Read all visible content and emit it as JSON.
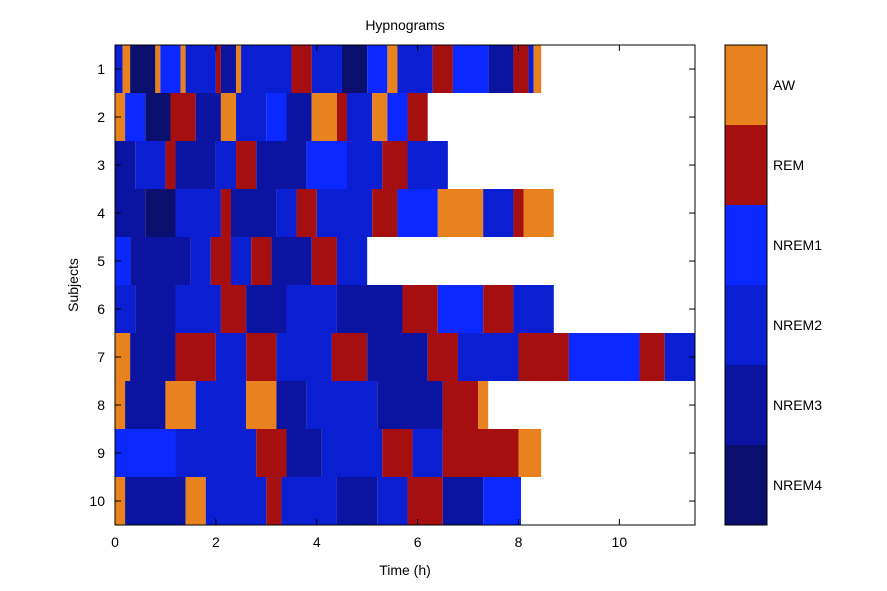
{
  "chart_data": {
    "type": "heatmap",
    "title": "Hypnograms",
    "xlabel": "Time (h)",
    "ylabel": "Subjects",
    "xlim": [
      0,
      11.5
    ],
    "xticks": [
      0,
      2,
      4,
      6,
      8,
      10
    ],
    "yticks": [
      1,
      2,
      3,
      4,
      5,
      6,
      7,
      8,
      9,
      10
    ],
    "grid": false,
    "colorbar": {
      "placement": "right",
      "labels": [
        "AW",
        "REM",
        "NREM1",
        "NREM2",
        "NREM3",
        "NREM4"
      ],
      "colors": [
        "#E8821E",
        "#A50F0F",
        "#0A28FF",
        "#0A1ED2",
        "#0A14A0",
        "#0A0F6E"
      ]
    },
    "subjects": [
      {
        "subject": 1,
        "duration_h": 8.45,
        "segments": [
          [
            0,
            0.15,
            "NREM2"
          ],
          [
            0.15,
            0.3,
            "AW"
          ],
          [
            0.3,
            0.8,
            "NREM4"
          ],
          [
            0.8,
            0.9,
            "AW"
          ],
          [
            0.9,
            1.3,
            "NREM1"
          ],
          [
            1.3,
            1.4,
            "AW"
          ],
          [
            1.4,
            2.0,
            "NREM2"
          ],
          [
            2.0,
            2.1,
            "REM"
          ],
          [
            2.1,
            2.4,
            "NREM3"
          ],
          [
            2.4,
            2.5,
            "AW"
          ],
          [
            2.5,
            3.5,
            "NREM2"
          ],
          [
            3.5,
            3.9,
            "REM"
          ],
          [
            3.9,
            4.5,
            "NREM2"
          ],
          [
            4.5,
            5.0,
            "NREM4"
          ],
          [
            5.0,
            5.4,
            "NREM1"
          ],
          [
            5.4,
            5.6,
            "AW"
          ],
          [
            5.6,
            6.3,
            "NREM2"
          ],
          [
            6.3,
            6.7,
            "REM"
          ],
          [
            6.7,
            7.4,
            "NREM1"
          ],
          [
            7.4,
            7.9,
            "NREM3"
          ],
          [
            7.9,
            8.2,
            "REM"
          ],
          [
            8.2,
            8.3,
            "NREM2"
          ],
          [
            8.3,
            8.45,
            "AW"
          ]
        ]
      },
      {
        "subject": 2,
        "duration_h": 6.2,
        "segments": [
          [
            0,
            0.2,
            "AW"
          ],
          [
            0.2,
            0.6,
            "NREM1"
          ],
          [
            0.6,
            1.1,
            "NREM4"
          ],
          [
            1.1,
            1.6,
            "REM"
          ],
          [
            1.6,
            2.1,
            "NREM3"
          ],
          [
            2.1,
            2.4,
            "AW"
          ],
          [
            2.4,
            3.0,
            "NREM2"
          ],
          [
            3.0,
            3.4,
            "NREM1"
          ],
          [
            3.4,
            3.9,
            "NREM3"
          ],
          [
            3.9,
            4.4,
            "AW"
          ],
          [
            4.4,
            4.6,
            "REM"
          ],
          [
            4.6,
            5.1,
            "NREM2"
          ],
          [
            5.1,
            5.4,
            "AW"
          ],
          [
            5.4,
            5.8,
            "NREM1"
          ],
          [
            5.8,
            6.2,
            "REM"
          ]
        ]
      },
      {
        "subject": 3,
        "duration_h": 6.6,
        "segments": [
          [
            0,
            0.4,
            "NREM3"
          ],
          [
            0.4,
            1.0,
            "NREM2"
          ],
          [
            1.0,
            1.2,
            "REM"
          ],
          [
            1.2,
            2.0,
            "NREM3"
          ],
          [
            2.0,
            2.4,
            "NREM2"
          ],
          [
            2.4,
            2.8,
            "REM"
          ],
          [
            2.8,
            3.8,
            "NREM3"
          ],
          [
            3.8,
            4.6,
            "NREM1"
          ],
          [
            4.6,
            5.3,
            "NREM2"
          ],
          [
            5.3,
            5.8,
            "REM"
          ],
          [
            5.8,
            6.6,
            "NREM2"
          ]
        ]
      },
      {
        "subject": 4,
        "duration_h": 8.7,
        "segments": [
          [
            0,
            0.6,
            "NREM3"
          ],
          [
            0.6,
            1.2,
            "NREM4"
          ],
          [
            1.2,
            2.1,
            "NREM2"
          ],
          [
            2.1,
            2.3,
            "REM"
          ],
          [
            2.3,
            3.2,
            "NREM3"
          ],
          [
            3.2,
            3.6,
            "NREM2"
          ],
          [
            3.6,
            4.0,
            "REM"
          ],
          [
            4.0,
            5.1,
            "NREM2"
          ],
          [
            5.1,
            5.6,
            "REM"
          ],
          [
            5.6,
            6.4,
            "NREM1"
          ],
          [
            6.4,
            7.3,
            "AW"
          ],
          [
            7.3,
            7.9,
            "NREM2"
          ],
          [
            7.9,
            8.1,
            "REM"
          ],
          [
            8.1,
            8.7,
            "AW"
          ]
        ]
      },
      {
        "subject": 5,
        "duration_h": 5.0,
        "segments": [
          [
            0,
            0.3,
            "NREM1"
          ],
          [
            0.3,
            1.5,
            "NREM3"
          ],
          [
            1.5,
            1.9,
            "NREM2"
          ],
          [
            1.9,
            2.3,
            "REM"
          ],
          [
            2.3,
            2.7,
            "NREM2"
          ],
          [
            2.7,
            3.1,
            "REM"
          ],
          [
            3.1,
            3.9,
            "NREM3"
          ],
          [
            3.9,
            4.4,
            "REM"
          ],
          [
            4.4,
            5.0,
            "NREM2"
          ]
        ]
      },
      {
        "subject": 6,
        "duration_h": 8.7,
        "segments": [
          [
            0,
            0.4,
            "NREM2"
          ],
          [
            0.4,
            1.2,
            "NREM3"
          ],
          [
            1.2,
            2.1,
            "NREM2"
          ],
          [
            2.1,
            2.6,
            "REM"
          ],
          [
            2.6,
            3.4,
            "NREM3"
          ],
          [
            3.4,
            4.4,
            "NREM2"
          ],
          [
            4.4,
            5.7,
            "NREM3"
          ],
          [
            5.7,
            6.4,
            "REM"
          ],
          [
            6.4,
            7.3,
            "NREM1"
          ],
          [
            7.3,
            7.9,
            "REM"
          ],
          [
            7.9,
            8.7,
            "NREM2"
          ]
        ]
      },
      {
        "subject": 7,
        "duration_h": 11.5,
        "segments": [
          [
            0,
            0.3,
            "AW"
          ],
          [
            0.3,
            1.2,
            "NREM3"
          ],
          [
            1.2,
            2.0,
            "REM"
          ],
          [
            2.0,
            2.6,
            "NREM2"
          ],
          [
            2.6,
            3.2,
            "REM"
          ],
          [
            3.2,
            4.3,
            "NREM2"
          ],
          [
            4.3,
            5.0,
            "REM"
          ],
          [
            5.0,
            6.2,
            "NREM3"
          ],
          [
            6.2,
            6.8,
            "REM"
          ],
          [
            6.8,
            8.0,
            "NREM2"
          ],
          [
            8.0,
            9.0,
            "REM"
          ],
          [
            9.0,
            10.4,
            "NREM1"
          ],
          [
            10.4,
            10.9,
            "REM"
          ],
          [
            10.9,
            11.5,
            "NREM2"
          ]
        ]
      },
      {
        "subject": 8,
        "duration_h": 7.4,
        "segments": [
          [
            0,
            0.2,
            "AW"
          ],
          [
            0.2,
            1.0,
            "NREM3"
          ],
          [
            1.0,
            1.6,
            "AW"
          ],
          [
            1.6,
            2.6,
            "NREM2"
          ],
          [
            2.6,
            3.2,
            "AW"
          ],
          [
            3.2,
            3.8,
            "NREM3"
          ],
          [
            3.8,
            5.2,
            "NREM2"
          ],
          [
            5.2,
            6.5,
            "NREM3"
          ],
          [
            6.5,
            7.2,
            "REM"
          ],
          [
            7.2,
            7.4,
            "AW"
          ]
        ]
      },
      {
        "subject": 9,
        "duration_h": 8.45,
        "segments": [
          [
            0,
            1.2,
            "NREM1"
          ],
          [
            1.2,
            2.8,
            "NREM2"
          ],
          [
            2.8,
            3.4,
            "REM"
          ],
          [
            3.4,
            4.1,
            "NREM3"
          ],
          [
            4.1,
            5.3,
            "NREM2"
          ],
          [
            5.3,
            5.9,
            "REM"
          ],
          [
            5.9,
            6.5,
            "NREM2"
          ],
          [
            6.5,
            8.0,
            "REM"
          ],
          [
            8.0,
            8.45,
            "AW"
          ]
        ]
      },
      {
        "subject": 10,
        "duration_h": 8.05,
        "segments": [
          [
            0,
            0.2,
            "AW"
          ],
          [
            0.2,
            1.4,
            "NREM3"
          ],
          [
            1.4,
            1.8,
            "AW"
          ],
          [
            1.8,
            3.0,
            "NREM2"
          ],
          [
            3.0,
            3.3,
            "REM"
          ],
          [
            3.3,
            4.4,
            "NREM2"
          ],
          [
            4.4,
            5.2,
            "NREM3"
          ],
          [
            5.2,
            5.8,
            "NREM2"
          ],
          [
            5.8,
            6.5,
            "REM"
          ],
          [
            6.5,
            7.3,
            "NREM3"
          ],
          [
            7.3,
            8.05,
            "NREM1"
          ]
        ]
      }
    ]
  }
}
